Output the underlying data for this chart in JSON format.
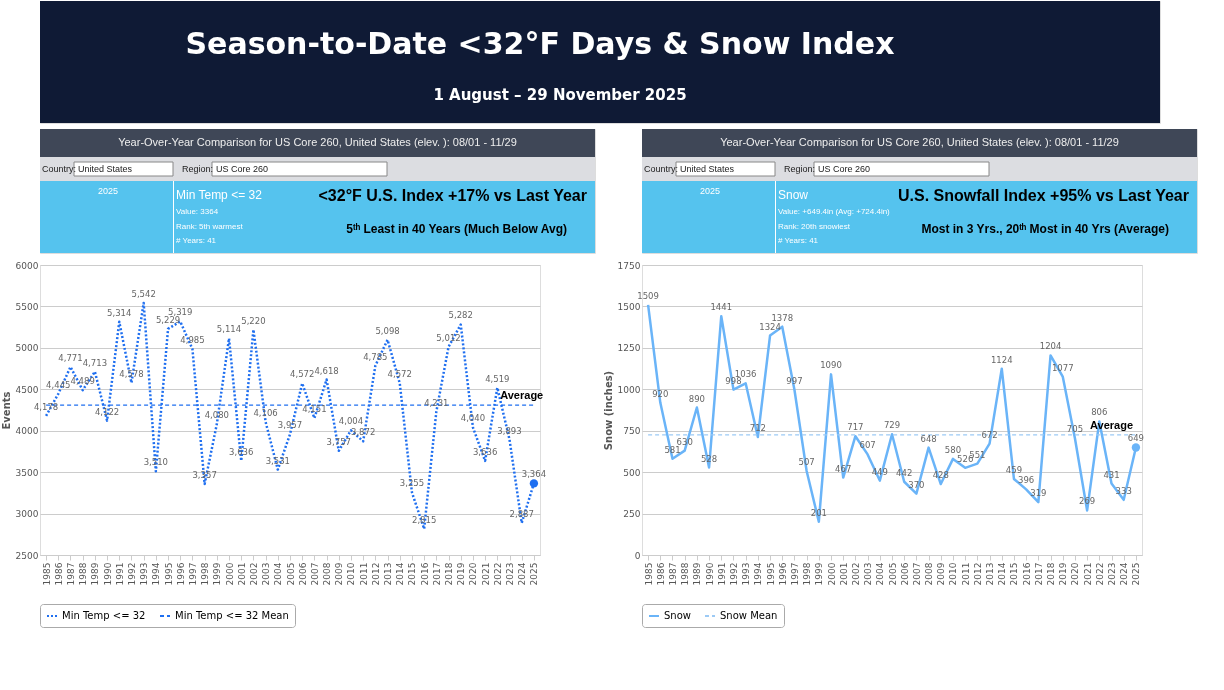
{
  "chart_data": [
    {
      "type": "other",
      "title": "Season-to-Date <32°F Days & Snow Index",
      "subtitle": "1 August – 29 November 2025"
    },
    {
      "type": "line",
      "title": "<32°F U.S. Index +17% vs Last Year",
      "subtitle": "5ᵗʰ Least in 40 Years (Much Below Avg)",
      "ylabel": "Events",
      "annotations": [
        "Year-Over-Year Comparison for US Core 260, United States (elev. ): 08/01 - 11/29",
        "Country:",
        "United States",
        "Region:",
        "US Core 260",
        "2025",
        "Min Temp <= 32",
        "Value: 3364",
        "Rank: 5th warmest",
        "# Years: 41",
        {
          "text": "Average",
          "x": "2024",
          "y": 4310
        }
      ],
      "categories": [
        "1985",
        "1986",
        "1987",
        "1988",
        "1989",
        "1990",
        "1991",
        "1992",
        "1993",
        "1994",
        "1995",
        "1996",
        "1997",
        "1998",
        "1999",
        "2000",
        "2001",
        "2002",
        "2003",
        "2004",
        "2005",
        "2006",
        "2007",
        "2008",
        "2009",
        "2010",
        "2011",
        "2012",
        "2013",
        "2014",
        "2015",
        "2016",
        "2017",
        "2018",
        "2019",
        "2020",
        "2021",
        "2022",
        "2023",
        "2024",
        "2025"
      ],
      "series": [
        {
          "name": "Min Temp <= 32",
          "color": "#1f6ff0",
          "line_style": "dotted",
          "values": [
            4178,
            4445,
            4771,
            4489,
            4713,
            4122,
            5314,
            4578,
            5542,
            3510,
            5229,
            5319,
            4985,
            3357,
            4080,
            5114,
            3636,
            5220,
            4106,
            3531,
            3957,
            4572,
            4151,
            4618,
            3757,
            4004,
            3872,
            4785,
            5098,
            4572,
            3255,
            2815,
            4231,
            5012,
            5282,
            4040,
            3636,
            4519,
            3893,
            2887,
            3364
          ],
          "value_labels": [
            "4,178",
            "4,445",
            "4,771",
            "4,489",
            "4,713",
            "4,122",
            "5,314",
            "4,578",
            "5,542",
            "3,510",
            "5,229",
            "5,319",
            "4,985",
            "3,357",
            "4,080",
            "5,114",
            "3,636",
            "5,220",
            "4,106",
            "3,531",
            "3,957",
            "4,572",
            "4,151",
            "4,618",
            "3,757",
            "4,004",
            "3,872",
            "4,785",
            "5,098",
            "4,572",
            "3,255",
            "2,815",
            "4,231",
            "5,012",
            "5,282",
            "4,040",
            "3,636",
            "4,519",
            "3,893",
            "2,887",
            "3,364"
          ]
        },
        {
          "name": "Min Temp <= 32 Mean",
          "color": "#1f6ff0",
          "line_style": "dashed",
          "values": [
            4310,
            4310,
            4310,
            4310,
            4310,
            4310,
            4310,
            4310,
            4310,
            4310,
            4310,
            4310,
            4310,
            4310,
            4310,
            4310,
            4310,
            4310,
            4310,
            4310,
            4310,
            4310,
            4310,
            4310,
            4310,
            4310,
            4310,
            4310,
            4310,
            4310,
            4310,
            4310,
            4310,
            4310,
            4310,
            4310,
            4310,
            4310,
            4310,
            4310,
            4310
          ]
        },
        {
          "type": "scatter",
          "color": "#1f6ff0",
          "values": [
            null,
            null,
            null,
            null,
            null,
            null,
            null,
            null,
            null,
            null,
            null,
            null,
            null,
            null,
            null,
            null,
            null,
            null,
            null,
            null,
            null,
            null,
            null,
            null,
            null,
            null,
            null,
            null,
            null,
            null,
            null,
            null,
            null,
            null,
            null,
            null,
            null,
            null,
            null,
            null,
            3364
          ]
        }
      ],
      "ylim": [
        2500,
        6000
      ],
      "yticks": [
        2500,
        3000,
        3500,
        4000,
        4500,
        5000,
        5500,
        6000
      ],
      "grid": "y",
      "legend": "bottom"
    },
    {
      "type": "line",
      "title": "U.S. Snowfall Index +95% vs Last Year",
      "subtitle": "Most in 3 Yrs., 20ᵗʰ Most in 40 Yrs (Average)",
      "ylabel": "Snow (inches)",
      "annotations": [
        "Year-Over-Year Comparison for US Core 260, United States (elev. ): 08/01 - 11/29",
        "Country:",
        "United States",
        "Region:",
        "US Core 260",
        "2025",
        "Snow",
        "Value: +649.4in (Avg: +724.4in)",
        "Rank: 20th snowiest",
        "# Years: 41",
        {
          "text": "Average",
          "x": "2023",
          "y": 724.4
        }
      ],
      "categories": [
        "1985",
        "1986",
        "1987",
        "1988",
        "1989",
        "1990",
        "1991",
        "1992",
        "1993",
        "1994",
        "1995",
        "1996",
        "1997",
        "1998",
        "1999",
        "2000",
        "2001",
        "2002",
        "2003",
        "2004",
        "2005",
        "2006",
        "2007",
        "2008",
        "2009",
        "2010",
        "2011",
        "2012",
        "2013",
        "2014",
        "2015",
        "2016",
        "2017",
        "2018",
        "2019",
        "2020",
        "2021",
        "2022",
        "2023",
        "2024",
        "2025"
      ],
      "series": [
        {
          "name": "Snow",
          "color": "#6ab4f8",
          "line_style": "solid",
          "values": [
            1509,
            920,
            581,
            630,
            890,
            528,
            1441,
            998,
            1036,
            712,
            1324,
            1378,
            997,
            507,
            201,
            1090,
            467,
            717,
            607,
            449,
            729,
            442,
            370,
            648,
            428,
            580,
            526,
            551,
            672,
            1124,
            459,
            396,
            319,
            1204,
            1077,
            705,
            269,
            806,
            431,
            333,
            649
          ],
          "value_labels": [
            "1509",
            "920",
            "581",
            "630",
            "890",
            "528",
            "1441",
            "998",
            "1036",
            "712",
            "1324",
            "1378",
            "997",
            "507",
            "201",
            "1090",
            "467",
            "717",
            "607",
            "449",
            "729",
            "442",
            "370",
            "648",
            "428",
            "580",
            "526",
            "551",
            "672",
            "1124",
            "459",
            "396",
            "319",
            "1204",
            "1077",
            "705",
            "269",
            "806",
            "431",
            "333",
            "649"
          ]
        },
        {
          "name": "Snow Mean",
          "color": "#9ccaf5",
          "line_style": "dashed",
          "values": [
            724.4,
            724.4,
            724.4,
            724.4,
            724.4,
            724.4,
            724.4,
            724.4,
            724.4,
            724.4,
            724.4,
            724.4,
            724.4,
            724.4,
            724.4,
            724.4,
            724.4,
            724.4,
            724.4,
            724.4,
            724.4,
            724.4,
            724.4,
            724.4,
            724.4,
            724.4,
            724.4,
            724.4,
            724.4,
            724.4,
            724.4,
            724.4,
            724.4,
            724.4,
            724.4,
            724.4,
            724.4,
            724.4,
            724.4,
            724.4,
            724.4
          ]
        },
        {
          "type": "scatter",
          "color": "#6ab4f8",
          "values": [
            null,
            null,
            null,
            null,
            null,
            null,
            null,
            null,
            null,
            null,
            null,
            null,
            null,
            null,
            null,
            null,
            null,
            null,
            null,
            null,
            null,
            null,
            null,
            null,
            null,
            null,
            null,
            null,
            null,
            null,
            null,
            null,
            null,
            null,
            null,
            null,
            null,
            null,
            null,
            null,
            649
          ]
        }
      ],
      "ylim": [
        0,
        1750
      ],
      "yticks": [
        0,
        250,
        500,
        750,
        1000,
        1250,
        1500,
        1750
      ],
      "grid": "y",
      "legend": "bottom"
    }
  ]
}
